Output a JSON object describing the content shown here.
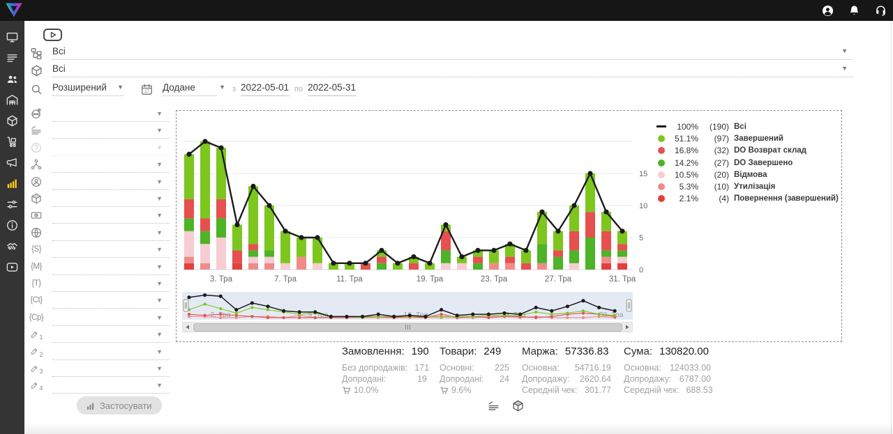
{
  "topbar": {
    "icons": [
      {
        "name": "user-account-icon"
      },
      {
        "name": "notifications-bell-icon"
      },
      {
        "name": "support-headset-icon"
      }
    ]
  },
  "sidebar": {
    "items": [
      {
        "icon": "monitor",
        "name": "sidebar-item-dashboard"
      },
      {
        "icon": "orders",
        "name": "sidebar-item-orders"
      },
      {
        "icon": "customers",
        "name": "sidebar-item-customers"
      },
      {
        "icon": "warehouse",
        "name": "sidebar-item-warehouse"
      },
      {
        "icon": "products",
        "name": "sidebar-item-products"
      },
      {
        "icon": "supply",
        "name": "sidebar-item-procurement"
      },
      {
        "icon": "marketing",
        "name": "sidebar-item-marketing"
      },
      {
        "icon": "analytics",
        "name": "sidebar-item-statistics",
        "active": true
      },
      {
        "icon": "settings",
        "name": "sidebar-item-settings"
      },
      {
        "icon": "info",
        "name": "sidebar-item-info"
      },
      {
        "icon": "partners",
        "name": "sidebar-item-partners"
      },
      {
        "icon": "video",
        "name": "sidebar-item-video-tutorials"
      }
    ]
  },
  "filters": {
    "status_filter": {
      "value": "Всі",
      "icon": "sitemap"
    },
    "product_filter": {
      "value": "Всі",
      "icon": "package"
    },
    "search_mode": {
      "value": "Розширений",
      "icon": "search"
    },
    "date_type": {
      "value": "Додане",
      "icon": "calendar"
    },
    "from_label": "з",
    "date_from": "2022-05-01",
    "to_label": "по",
    "date_to": "2022-05-31",
    "side_rows": [
      {
        "icon": "globe-flag",
        "name": "filter-region",
        "value": ""
      },
      {
        "icon": "filter-lines",
        "name": "filter-status-list",
        "value": ""
      },
      {
        "icon": "question",
        "name": "filter-help",
        "value": "",
        "disabled": true
      },
      {
        "icon": "hierarchy",
        "name": "filter-structure",
        "value": ""
      },
      {
        "icon": "person",
        "name": "filter-manager",
        "value": ""
      },
      {
        "icon": "cube",
        "name": "filter-product-type",
        "value": ""
      },
      {
        "icon": "money",
        "name": "filter-payment",
        "value": ""
      },
      {
        "icon": "globe",
        "name": "filter-source",
        "value": ""
      },
      {
        "icon": "brace",
        "glyph": "{S}",
        "name": "filter-tag-s",
        "value": ""
      },
      {
        "icon": "brace",
        "glyph": "{M}",
        "name": "filter-tag-m",
        "value": ""
      },
      {
        "icon": "brace",
        "glyph": "{T}",
        "name": "filter-tag-t",
        "value": ""
      },
      {
        "icon": "brace",
        "glyph": "{Ct}",
        "name": "filter-tag-ct",
        "value": ""
      },
      {
        "icon": "brace",
        "glyph": "{Cp}",
        "name": "filter-tag-cp",
        "value": ""
      },
      {
        "icon": "pencil",
        "num": "1",
        "name": "filter-custom-field-1",
        "value": ""
      },
      {
        "icon": "pencil",
        "num": "2",
        "name": "filter-custom-field-2",
        "value": ""
      },
      {
        "icon": "pencil",
        "num": "3",
        "name": "filter-custom-field-3",
        "value": ""
      },
      {
        "icon": "pencil",
        "num": "4",
        "name": "filter-custom-field-4",
        "value": ""
      }
    ],
    "apply_label": "Застосувати"
  },
  "chart_data": {
    "type": "line+stacked-bar",
    "x_count": 28,
    "x_ticks": [
      {
        "i": 2,
        "label": "3. Тра"
      },
      {
        "i": 6,
        "label": "7. Тра"
      },
      {
        "i": 10,
        "label": "11. Тра"
      },
      {
        "i": 15,
        "label": "19. Тра"
      },
      {
        "i": 19,
        "label": "23. Тра"
      },
      {
        "i": 23,
        "label": "27. Тра"
      },
      {
        "i": 27,
        "label": "31. Тра"
      }
    ],
    "y_ticks": [
      0,
      5,
      10,
      15
    ],
    "ylim": [
      0,
      20
    ],
    "line": {
      "name": "Всі",
      "color": "#1b1b1b",
      "values": [
        18,
        20,
        19,
        7,
        13,
        10,
        6,
        5,
        5,
        1,
        1,
        1,
        3,
        1,
        2,
        1,
        7,
        2,
        3,
        3,
        4,
        3,
        9,
        6,
        10,
        15,
        9,
        6
      ]
    },
    "stack_order": [
      "povernennya",
      "utylizatsiya",
      "vidmova",
      "do_zaversheno",
      "do_vozvrat",
      "zavershenyi"
    ],
    "series": [
      {
        "key": "zavershenyi",
        "name": "Завершений",
        "color": "#7cc61e",
        "values": [
          7,
          12,
          8,
          4,
          9,
          7,
          5,
          3,
          4,
          1,
          1,
          0,
          1,
          1,
          1,
          1,
          1,
          1,
          1,
          2,
          2,
          2,
          5,
          3,
          4,
          6,
          3,
          2
        ]
      },
      {
        "key": "do_vozvrat",
        "name": "DO Возврат склад",
        "color": "#e6504e",
        "values": [
          3,
          2,
          3,
          2,
          1,
          0,
          0,
          0,
          0,
          0,
          0,
          1,
          1,
          0,
          1,
          0,
          3,
          0,
          1,
          0,
          1,
          1,
          0,
          1,
          3,
          4,
          3,
          1
        ]
      },
      {
        "key": "do_zaversheno",
        "name": "DO Завершено",
        "color": "#4db327",
        "values": [
          2,
          2,
          3,
          0,
          1,
          1,
          0,
          0,
          0,
          0,
          0,
          0,
          1,
          0,
          0,
          0,
          2,
          0,
          1,
          0,
          0,
          0,
          3,
          2,
          2,
          5,
          1,
          1
        ]
      },
      {
        "key": "vidmova",
        "name": "Відмова",
        "color": "#f7ccd2",
        "values": [
          4,
          3,
          5,
          0,
          1,
          1,
          1,
          0,
          1,
          0,
          0,
          0,
          0,
          0,
          0,
          0,
          1,
          1,
          0,
          0,
          0,
          0,
          0,
          0,
          1,
          0,
          0,
          1
        ]
      },
      {
        "key": "utylizatsiya",
        "name": "Утилізація",
        "color": "#ef8c8a",
        "values": [
          1,
          1,
          0,
          0,
          1,
          1,
          0,
          2,
          0,
          0,
          0,
          0,
          0,
          0,
          0,
          0,
          0,
          0,
          0,
          1,
          1,
          0,
          1,
          0,
          0,
          0,
          1,
          0
        ]
      },
      {
        "key": "povernennya",
        "name": "Повернення (завершений)",
        "color": "#e2403d",
        "values": [
          1,
          0,
          0,
          1,
          0,
          0,
          0,
          0,
          0,
          0,
          0,
          0,
          0,
          0,
          0,
          0,
          0,
          0,
          0,
          0,
          0,
          0,
          0,
          0,
          0,
          0,
          1,
          1
        ]
      }
    ],
    "legend": [
      {
        "marker": "line",
        "color": "#1b1b1b",
        "percent": "100%",
        "count": "(190)",
        "label": "Всі"
      },
      {
        "marker": "dot",
        "color": "#7cc61e",
        "percent": "51.1%",
        "count": "(97)",
        "label": "Завершений"
      },
      {
        "marker": "dot",
        "color": "#e6504e",
        "percent": "16.8%",
        "count": "(32)",
        "label": "DO Возврат склад"
      },
      {
        "marker": "dot",
        "color": "#4db327",
        "percent": "14.2%",
        "count": "(27)",
        "label": "DO Завершено"
      },
      {
        "marker": "dot",
        "color": "#f7ccd2",
        "percent": "10.5%",
        "count": "(20)",
        "label": "Відмова"
      },
      {
        "marker": "dot",
        "color": "#ef8c8a",
        "percent": "5.3%",
        "count": "(10)",
        "label": "Утилізація"
      },
      {
        "marker": "dot",
        "color": "#e2403d",
        "percent": "2.1%",
        "count": "(4)",
        "label": "Повернення (завершений)"
      }
    ],
    "navigator": {
      "labels": [
        "2. Тра",
        "9. Тра",
        "16. Тра",
        "23. Тра",
        "30. Тра"
      ]
    }
  },
  "stats": {
    "columns": [
      {
        "title": "Замовлення:",
        "value": "190",
        "width": "w1",
        "rows": [
          [
            "Без допродажів:",
            "171"
          ],
          [
            "Допродані:",
            "19"
          ]
        ],
        "cart_percent": "10.0%"
      },
      {
        "title": "Товари:",
        "value": "249",
        "width": "w2",
        "rows": [
          [
            "Основні:",
            "225"
          ],
          [
            "Допродані:",
            "24"
          ]
        ],
        "cart_percent": "9.6%"
      },
      {
        "title": "Маржа:",
        "value": "57336.83",
        "width": "w3",
        "rows": [
          [
            "Основна:",
            "54716.19"
          ],
          [
            "Допродажу:",
            "2620.64"
          ],
          [
            "Середній чек:",
            "301.77"
          ]
        ]
      },
      {
        "title": "Сума:",
        "value": "130820.00",
        "width": "w4",
        "rows": [
          [
            "Основна:",
            "124033.00"
          ],
          [
            "Допродажу:",
            "6787.00"
          ],
          [
            "Середній чек:",
            "688.53"
          ]
        ]
      }
    ]
  },
  "footer": {
    "icons": [
      {
        "icon": "filter-lines",
        "name": "group-by-status-toggle"
      },
      {
        "icon": "cube",
        "name": "group-by-product-toggle"
      }
    ]
  }
}
